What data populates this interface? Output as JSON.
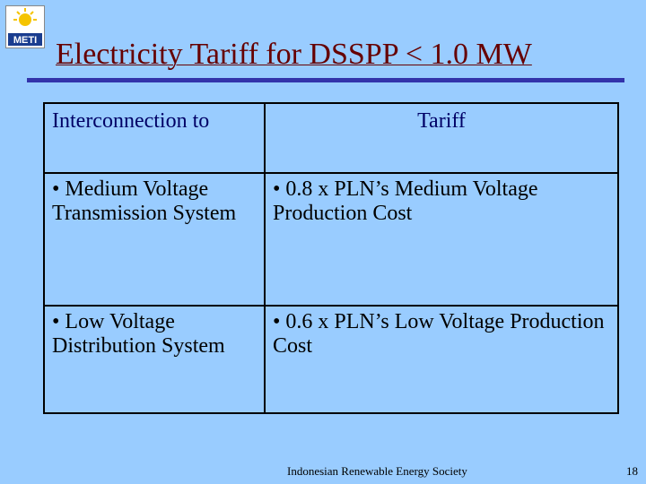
{
  "logo": "METI",
  "title": "Electricity Tariff for DSSPP < 1.0 MW",
  "table": {
    "headers": [
      "Interconnection to",
      "Tariff"
    ],
    "rows": [
      [
        "• Medium Voltage Transmission System",
        "• 0.8 x PLN’s Medium Voltage Production Cost"
      ],
      [
        "• Low Voltage Distribution System",
        "• 0.6 x PLN’s Low Voltage Production Cost"
      ]
    ]
  },
  "footer": "Indonesian Renewable Energy Society",
  "page_number": "18"
}
